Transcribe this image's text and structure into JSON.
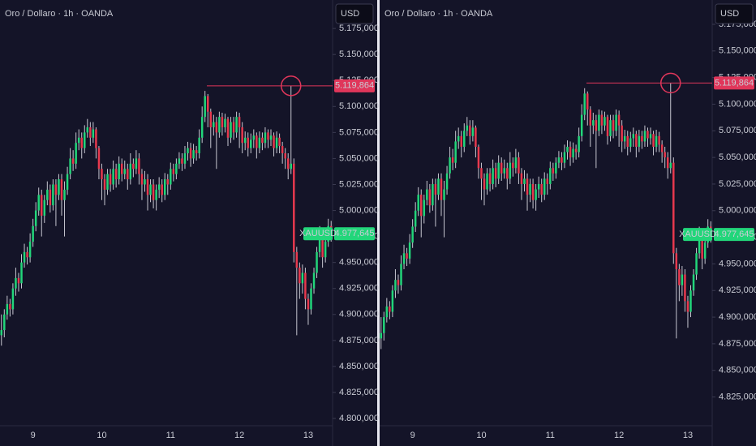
{
  "chart_data": [
    {
      "type": "candlestick",
      "title": "Oro / Dollaro · 1h · OANDA",
      "currency": "USD",
      "symbol": "XAUUSD",
      "up_color": "#22d67a",
      "down_color": "#e8394e",
      "marker_color": "#e0365a",
      "categories": [
        null,
        null,
        null,
        null,
        null,
        null,
        null,
        null,
        null,
        null,
        null,
        "9",
        null,
        null,
        null,
        null,
        null,
        null,
        null,
        null,
        null,
        null,
        null,
        null,
        null,
        null,
        null,
        null,
        null,
        null,
        null,
        null,
        null,
        null,
        null,
        "10",
        null,
        null,
        null,
        null,
        null,
        null,
        null,
        null,
        null,
        null,
        null,
        null,
        null,
        null,
        null,
        null,
        null,
        null,
        null,
        null,
        null,
        null,
        null,
        "11",
        null,
        null,
        null,
        null,
        null,
        null,
        null,
        null,
        null,
        null,
        null,
        null,
        null,
        null,
        null,
        null,
        null,
        null,
        null,
        null,
        null,
        null,
        null,
        "12",
        null,
        null,
        null,
        null,
        null,
        null,
        null,
        null,
        null,
        null,
        null,
        null,
        null,
        null,
        null,
        null,
        null,
        null,
        null,
        null,
        null,
        null,
        null,
        "13",
        null,
        null,
        null,
        null,
        null,
        null,
        null,
        null
      ],
      "open": [
        4880,
        4885,
        4900,
        4910,
        4905,
        4925,
        4935,
        4930,
        4950,
        4960,
        4955,
        4970,
        4985,
        5000,
        5015,
        4995,
        5010,
        5020,
        5005,
        5025,
        5015,
        5030,
        5010,
        5020,
        5035,
        5050,
        5045,
        5065,
        5070,
        5060,
        5075,
        5080,
        5070,
        5078,
        5060,
        5040,
        5030,
        5020,
        5035,
        5025,
        5040,
        5030,
        5045,
        5035,
        5040,
        5030,
        5045,
        5040,
        5050,
        5035,
        5025,
        5030,
        5015,
        5025,
        5010,
        5020,
        5025,
        5015,
        5030,
        5025,
        5040,
        5035,
        5045,
        5050,
        5045,
        5055,
        5060,
        5050,
        5058,
        5055,
        5070,
        5090,
        5110,
        5095,
        5080,
        5085,
        5075,
        5090,
        5080,
        5088,
        5070,
        5085,
        5075,
        5090,
        5080,
        5065,
        5070,
        5060,
        5068,
        5072,
        5060,
        5070,
        5065,
        5075,
        5068,
        5072,
        5060,
        5070,
        5062,
        5055,
        5050,
        5040,
        5045,
        4960,
        4945,
        4930,
        4940,
        4915,
        4905,
        4925,
        4940,
        4960,
        4975,
        4955,
        4970,
        4985
      ],
      "high": [
        4900,
        4905,
        4918,
        4915,
        4930,
        4945,
        4940,
        4958,
        4968,
        4965,
        4978,
        4992,
        5008,
        5022,
        5020,
        5015,
        5028,
        5025,
        5030,
        5030,
        5035,
        5035,
        5028,
        5042,
        5060,
        5058,
        5075,
        5078,
        5075,
        5082,
        5088,
        5085,
        5085,
        5080,
        5062,
        5045,
        5035,
        5040,
        5040,
        5048,
        5045,
        5052,
        5050,
        5048,
        5045,
        5055,
        5050,
        5058,
        5055,
        5040,
        5038,
        5035,
        5030,
        5030,
        5025,
        5032,
        5030,
        5036,
        5035,
        5046,
        5045,
        5050,
        5056,
        5055,
        5062,
        5066,
        5065,
        5064,
        5062,
        5078,
        5100,
        5115,
        5112,
        5098,
        5092,
        5090,
        5095,
        5094,
        5093,
        5090,
        5090,
        5090,
        5095,
        5094,
        5085,
        5076,
        5075,
        5074,
        5078,
        5075,
        5076,
        5075,
        5080,
        5078,
        5078,
        5075,
        5076,
        5074,
        5066,
        5060,
        5055,
        5119.864,
        5050,
        4965,
        4950,
        4948,
        4945,
        4920,
        4930,
        4945,
        4965,
        4985,
        4980,
        4975,
        4992,
        4990
      ],
      "low": [
        4870,
        4878,
        4895,
        4898,
        4900,
        4918,
        4922,
        4925,
        4945,
        4948,
        4950,
        4965,
        4980,
        4995,
        4975,
        4988,
        5005,
        4998,
        5000,
        4985,
        5010,
        4995,
        4975,
        5015,
        5030,
        5038,
        5040,
        5058,
        5050,
        5055,
        5070,
        5062,
        5065,
        5050,
        5030,
        5010,
        5005,
        5015,
        5018,
        5020,
        5022,
        5025,
        5028,
        5030,
        5020,
        5025,
        5032,
        5035,
        5025,
        5010,
        5018,
        5000,
        5008,
        5002,
        5000,
        5012,
        5008,
        5010,
        5015,
        5020,
        5028,
        5030,
        5040,
        5038,
        5040,
        5048,
        5042,
        5045,
        5048,
        5050,
        5065,
        5085,
        5080,
        5060,
        5072,
        5040,
        5070,
        5072,
        5075,
        5062,
        5065,
        5068,
        5070,
        5060,
        5055,
        5058,
        5052,
        5055,
        5060,
        5050,
        5055,
        5058,
        5060,
        5060,
        5062,
        5052,
        5055,
        5055,
        5045,
        5040,
        5030,
        5035,
        4950,
        4880,
        4915,
        4920,
        4905,
        4890,
        4900,
        4920,
        4935,
        4955,
        4945,
        4950,
        4965,
        4970
      ],
      "close": [
        4885,
        4900,
        4910,
        4905,
        4925,
        4935,
        4930,
        4950,
        4960,
        4955,
        4970,
        4985,
        5000,
        5015,
        4995,
        5010,
        5020,
        5005,
        5025,
        5015,
        5030,
        5010,
        5020,
        5035,
        5050,
        5045,
        5065,
        5070,
        5060,
        5075,
        5080,
        5070,
        5078,
        5060,
        5040,
        5030,
        5020,
        5035,
        5025,
        5040,
        5030,
        5045,
        5035,
        5040,
        5030,
        5045,
        5040,
        5050,
        5035,
        5025,
        5030,
        5015,
        5025,
        5010,
        5020,
        5025,
        5015,
        5030,
        5025,
        5040,
        5035,
        5045,
        5050,
        5045,
        5055,
        5060,
        5050,
        5058,
        5055,
        5070,
        5090,
        5110,
        5095,
        5080,
        5085,
        5075,
        5090,
        5080,
        5088,
        5070,
        5085,
        5075,
        5090,
        5080,
        5065,
        5070,
        5060,
        5068,
        5072,
        5060,
        5070,
        5065,
        5075,
        5068,
        5072,
        5060,
        5070,
        5062,
        5055,
        5050,
        5040,
        5045,
        4960,
        4945,
        4930,
        4940,
        4915,
        4905,
        4925,
        4940,
        4960,
        4975,
        4955,
        4970,
        4985,
        4977.645
      ],
      "ylim": [
        4793,
        5179
      ],
      "yticks": [
        {
          "value": 5175,
          "label": "5.175,000"
        },
        {
          "value": 5150,
          "label": "5.150,000"
        },
        {
          "value": 5125,
          "label": "5.125,000"
        },
        {
          "value": 5100,
          "label": "5.100,000"
        },
        {
          "value": 5075,
          "label": "5.075,000"
        },
        {
          "value": 5050,
          "label": "5.050,000"
        },
        {
          "value": 5025,
          "label": "5.025,000"
        },
        {
          "value": 5000,
          "label": "5.000,000"
        },
        {
          "value": 4975,
          "label": "4.975,000"
        },
        {
          "value": 4950,
          "label": "4.950,000"
        },
        {
          "value": 4925,
          "label": "4.925,000"
        },
        {
          "value": 4900,
          "label": "4.900,000"
        },
        {
          "value": 4875,
          "label": "4.875,000"
        },
        {
          "value": 4850,
          "label": "4.850,000"
        },
        {
          "value": 4825,
          "label": "4.825,000"
        },
        {
          "value": 4800,
          "label": "4.800,000"
        }
      ],
      "high_marker": {
        "value": 5119.864,
        "label": "5.119,864"
      },
      "last_price": {
        "value": 4977.645,
        "label": "4.977,645"
      }
    },
    {
      "type": "candlestick",
      "title": "Oro / Dollaro · 1h · OANDA",
      "currency": "USD",
      "symbol": "XAUUSD",
      "up_color": "#22d67a",
      "down_color": "#e8394e",
      "marker_color": "#e0365a",
      "categories": [
        null,
        null,
        null,
        null,
        null,
        null,
        null,
        null,
        null,
        null,
        null,
        "9",
        null,
        null,
        null,
        null,
        null,
        null,
        null,
        null,
        null,
        null,
        null,
        null,
        null,
        null,
        null,
        null,
        null,
        null,
        null,
        null,
        null,
        null,
        null,
        "10",
        null,
        null,
        null,
        null,
        null,
        null,
        null,
        null,
        null,
        null,
        null,
        null,
        null,
        null,
        null,
        null,
        null,
        null,
        null,
        null,
        null,
        null,
        null,
        "11",
        null,
        null,
        null,
        null,
        null,
        null,
        null,
        null,
        null,
        null,
        null,
        null,
        null,
        null,
        null,
        null,
        null,
        null,
        null,
        null,
        null,
        null,
        null,
        "12",
        null,
        null,
        null,
        null,
        null,
        null,
        null,
        null,
        null,
        null,
        null,
        null,
        null,
        null,
        null,
        null,
        null,
        null,
        null,
        null,
        null,
        null,
        null,
        "13",
        null,
        null,
        null,
        null,
        null,
        null,
        null,
        null
      ],
      "open": [
        4880,
        4885,
        4900,
        4910,
        4905,
        4925,
        4935,
        4930,
        4950,
        4960,
        4955,
        4970,
        4985,
        5000,
        5015,
        4995,
        5010,
        5020,
        5005,
        5025,
        5015,
        5030,
        5010,
        5020,
        5035,
        5050,
        5045,
        5065,
        5070,
        5060,
        5075,
        5080,
        5070,
        5078,
        5060,
        5040,
        5030,
        5020,
        5035,
        5025,
        5040,
        5030,
        5045,
        5035,
        5040,
        5030,
        5045,
        5040,
        5050,
        5035,
        5025,
        5030,
        5015,
        5025,
        5010,
        5020,
        5025,
        5015,
        5030,
        5025,
        5040,
        5035,
        5045,
        5050,
        5045,
        5055,
        5060,
        5050,
        5058,
        5055,
        5070,
        5090,
        5110,
        5095,
        5080,
        5085,
        5075,
        5090,
        5080,
        5088,
        5070,
        5085,
        5075,
        5090,
        5080,
        5065,
        5070,
        5060,
        5068,
        5072,
        5060,
        5070,
        5065,
        5075,
        5068,
        5072,
        5060,
        5070,
        5062,
        5055,
        5050,
        5040,
        5045,
        4960,
        4945,
        4930,
        4940,
        4915,
        4905,
        4925,
        4940,
        4960,
        4975,
        4955,
        4970,
        4985
      ],
      "high": [
        4900,
        4905,
        4918,
        4915,
        4930,
        4945,
        4940,
        4958,
        4968,
        4965,
        4978,
        4992,
        5008,
        5022,
        5020,
        5015,
        5028,
        5025,
        5030,
        5030,
        5035,
        5035,
        5028,
        5042,
        5060,
        5058,
        5075,
        5078,
        5075,
        5082,
        5088,
        5085,
        5085,
        5080,
        5062,
        5045,
        5035,
        5040,
        5040,
        5048,
        5045,
        5052,
        5050,
        5048,
        5045,
        5055,
        5050,
        5058,
        5055,
        5040,
        5038,
        5035,
        5030,
        5030,
        5025,
        5032,
        5030,
        5036,
        5035,
        5046,
        5045,
        5050,
        5056,
        5055,
        5062,
        5066,
        5065,
        5064,
        5062,
        5078,
        5100,
        5115,
        5112,
        5098,
        5092,
        5090,
        5095,
        5094,
        5093,
        5090,
        5090,
        5090,
        5095,
        5094,
        5085,
        5076,
        5075,
        5074,
        5078,
        5075,
        5076,
        5075,
        5080,
        5078,
        5078,
        5075,
        5076,
        5074,
        5066,
        5060,
        5055,
        5119.864,
        5050,
        4965,
        4950,
        4948,
        4945,
        4920,
        4930,
        4945,
        4965,
        4985,
        4980,
        4975,
        4992,
        4990
      ],
      "low": [
        4870,
        4878,
        4895,
        4898,
        4900,
        4918,
        4922,
        4925,
        4945,
        4948,
        4950,
        4965,
        4980,
        4995,
        4975,
        4988,
        5005,
        4998,
        5000,
        4985,
        5010,
        4995,
        4975,
        5015,
        5030,
        5038,
        5040,
        5058,
        5050,
        5055,
        5070,
        5062,
        5065,
        5050,
        5030,
        5010,
        5005,
        5015,
        5018,
        5020,
        5022,
        5025,
        5028,
        5030,
        5020,
        5025,
        5032,
        5035,
        5025,
        5010,
        5018,
        5000,
        5008,
        5002,
        5000,
        5012,
        5008,
        5010,
        5015,
        5020,
        5028,
        5030,
        5040,
        5038,
        5040,
        5048,
        5042,
        5045,
        5048,
        5050,
        5065,
        5085,
        5080,
        5060,
        5072,
        5040,
        5070,
        5072,
        5075,
        5062,
        5065,
        5068,
        5070,
        5060,
        5055,
        5058,
        5052,
        5055,
        5060,
        5050,
        5055,
        5058,
        5060,
        5060,
        5062,
        5052,
        5055,
        5055,
        5045,
        5040,
        5030,
        5035,
        4950,
        4880,
        4915,
        4920,
        4905,
        4890,
        4900,
        4920,
        4935,
        4955,
        4945,
        4950,
        4965,
        4970
      ],
      "close": [
        4885,
        4900,
        4910,
        4905,
        4925,
        4935,
        4930,
        4950,
        4960,
        4955,
        4970,
        4985,
        5000,
        5015,
        4995,
        5010,
        5020,
        5005,
        5025,
        5015,
        5030,
        5010,
        5020,
        5035,
        5050,
        5045,
        5065,
        5070,
        5060,
        5075,
        5080,
        5070,
        5078,
        5060,
        5040,
        5030,
        5020,
        5035,
        5025,
        5040,
        5030,
        5045,
        5035,
        5040,
        5030,
        5045,
        5040,
        5050,
        5035,
        5025,
        5030,
        5015,
        5025,
        5010,
        5020,
        5025,
        5015,
        5030,
        5025,
        5040,
        5035,
        5045,
        5050,
        5045,
        5055,
        5060,
        5050,
        5058,
        5055,
        5070,
        5090,
        5110,
        5095,
        5080,
        5085,
        5075,
        5090,
        5080,
        5088,
        5070,
        5085,
        5075,
        5090,
        5080,
        5065,
        5070,
        5060,
        5068,
        5072,
        5060,
        5070,
        5065,
        5075,
        5068,
        5072,
        5060,
        5070,
        5062,
        5055,
        5050,
        5040,
        5045,
        4960,
        4945,
        4930,
        4940,
        4915,
        4905,
        4925,
        4940,
        4960,
        4975,
        4955,
        4970,
        4985,
        4977.645
      ],
      "ylim": [
        4798,
        5175
      ],
      "yticks": [
        {
          "value": 5175,
          "label": "5.175,000"
        },
        {
          "value": 5150,
          "label": "5.150,000"
        },
        {
          "value": 5125,
          "label": "5.125,000"
        },
        {
          "value": 5100,
          "label": "5.100,000"
        },
        {
          "value": 5075,
          "label": "5.075,000"
        },
        {
          "value": 5050,
          "label": "5.050,000"
        },
        {
          "value": 5025,
          "label": "5.025,000"
        },
        {
          "value": 5000,
          "label": "5.000,000"
        },
        {
          "value": 4975,
          "label": "4.975,000"
        },
        {
          "value": 4950,
          "label": "4.950,000"
        },
        {
          "value": 4925,
          "label": "4.925,000"
        },
        {
          "value": 4900,
          "label": "4.900,000"
        },
        {
          "value": 4875,
          "label": "4.875,000"
        },
        {
          "value": 4850,
          "label": "4.850,000"
        },
        {
          "value": 4825,
          "label": "4.825,000"
        }
      ],
      "high_marker": {
        "value": 5119.864,
        "label": "5.119,864"
      },
      "last_price": {
        "value": 4977.645,
        "label": "4.977,645"
      }
    }
  ]
}
